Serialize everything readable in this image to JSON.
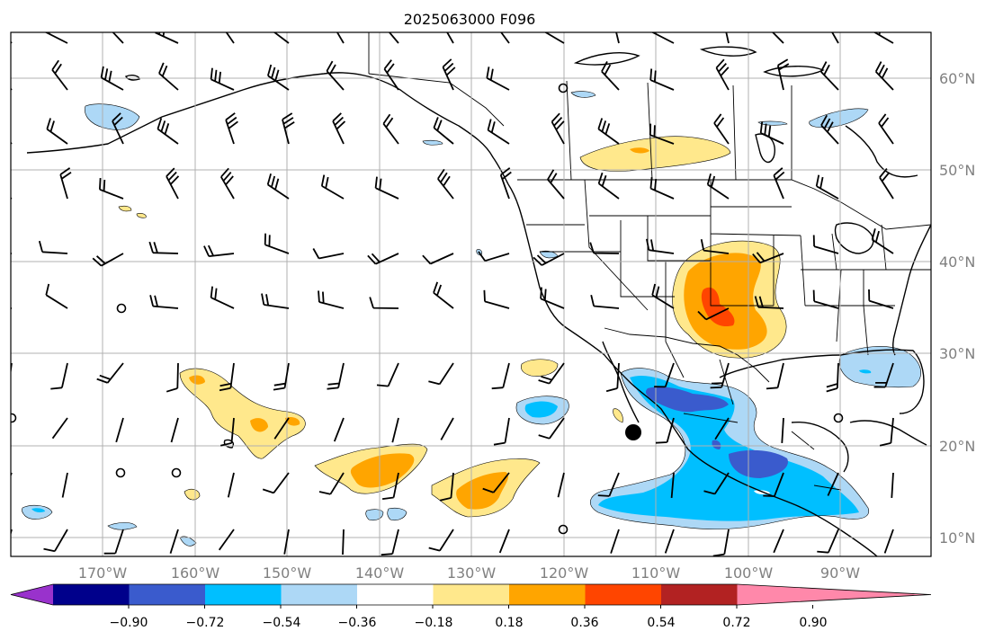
{
  "title": "2025063000 F096",
  "lon_labels": [
    "170°W",
    "160°W",
    "150°W",
    "140°W",
    "130°W",
    "120°W",
    "110°W",
    "100°W",
    "90°W"
  ],
  "lat_labels": [
    "60°N",
    "50°N",
    "40°N",
    "30°N",
    "20°N",
    "10°N"
  ],
  "colorbar": {
    "ticks": [
      "−0.90",
      "−0.72",
      "−0.54",
      "−0.36",
      "−0.18",
      "0.18",
      "0.36",
      "0.54",
      "0.72",
      "0.90"
    ],
    "colors": [
      "#9932cc",
      "#00008b",
      "#3a5bcd",
      "#00bfff",
      "#add8f6",
      "#ffffff",
      "#ffe88c",
      "#ffa500",
      "#ff4500",
      "#b22222",
      "#ff88aa"
    ]
  },
  "colors": {
    "light_blue": "#add8f6",
    "blue": "#00bfff",
    "royal_blue": "#3a5bcd",
    "light_yellow": "#ffe88c",
    "orange": "#ffa500",
    "red_orange": "#ff4500",
    "grid": "#b0b0b0",
    "tick_label": "#808080"
  }
}
